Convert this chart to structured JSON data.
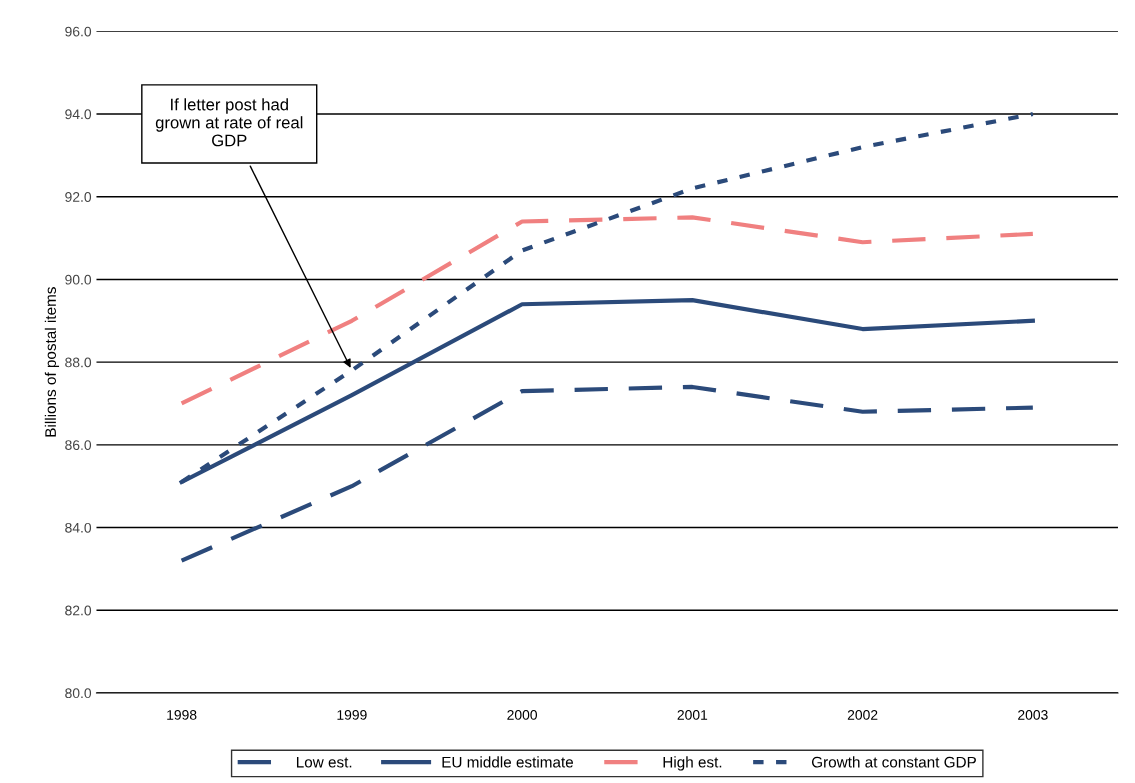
{
  "chart_data": {
    "type": "line",
    "ylabel": "Billions of postal items",
    "categories": [
      "1998",
      "1999",
      "2000",
      "2001",
      "2002",
      "2003"
    ],
    "series": [
      {
        "name": "Low est.",
        "color": "#2b4a7a",
        "line_style": "dashed",
        "values": [
          83.2,
          85.0,
          87.3,
          87.4,
          86.8,
          86.9
        ]
      },
      {
        "name": "EU middle estimate",
        "color": "#2b4a7a",
        "line_style": "solid",
        "values": [
          85.1,
          87.2,
          89.4,
          89.5,
          88.8,
          89.0
        ]
      },
      {
        "name": "High est.",
        "color": "#f08080",
        "line_style": "dashed",
        "values": [
          87.0,
          89.0,
          91.4,
          91.5,
          90.9,
          91.1
        ]
      },
      {
        "name": "Growth at constant GDP",
        "color": "#2b4a7a",
        "line_style": "dotted",
        "values": [
          85.1,
          87.8,
          90.7,
          92.2,
          93.2,
          94.0
        ]
      }
    ],
    "ylim": [
      80,
      96
    ],
    "yticks": [
      {
        "value": 80,
        "label": "80.0"
      },
      {
        "value": 82,
        "label": "82.0"
      },
      {
        "value": 84,
        "label": "84.0"
      },
      {
        "value": 86,
        "label": "86.0"
      },
      {
        "value": 88,
        "label": "88.0"
      },
      {
        "value": 90,
        "label": "90.0"
      },
      {
        "value": 92,
        "label": "92.0"
      },
      {
        "value": 94,
        "label": "94.0"
      },
      {
        "value": 96,
        "label": "96.0"
      }
    ],
    "grid": "y",
    "legend": "bottom",
    "marker": "none",
    "annotations": [
      {
        "text": "If letter post had\ngrown at rate of real\nGDP",
        "x": "1999",
        "y": 87.8
      }
    ]
  }
}
